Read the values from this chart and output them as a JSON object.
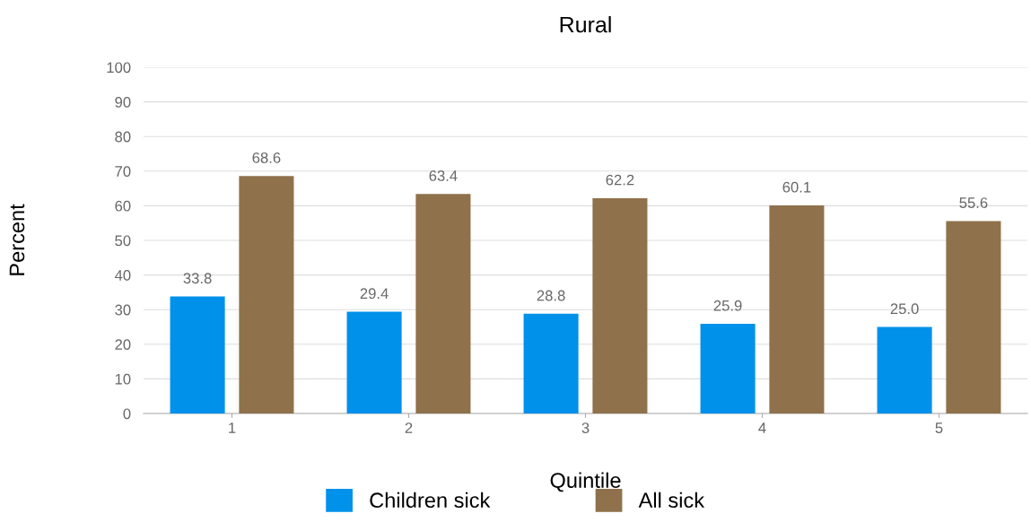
{
  "chart_data": {
    "type": "bar",
    "title": "Rural",
    "xlabel": "Quintile",
    "ylabel": "Percent",
    "categories": [
      "1",
      "2",
      "3",
      "4",
      "5"
    ],
    "series": [
      {
        "name": "Children sick",
        "color": "#0091ea",
        "values": [
          33.8,
          29.4,
          28.8,
          25.9,
          25.0
        ],
        "value_labels": [
          "33.8",
          "29.4",
          "28.8",
          "25.9",
          "25.0"
        ]
      },
      {
        "name": "All sick",
        "color": "#8f714b",
        "values": [
          68.6,
          63.4,
          62.2,
          60.1,
          55.6
        ],
        "value_labels": [
          "68.6",
          "63.4",
          "62.2",
          "60.1",
          "55.6"
        ]
      }
    ],
    "ylim": [
      0,
      100
    ],
    "yticks": [
      0,
      10,
      20,
      30,
      40,
      50,
      60,
      70,
      80,
      90,
      100
    ],
    "grid": "y",
    "legend": "bottom"
  }
}
